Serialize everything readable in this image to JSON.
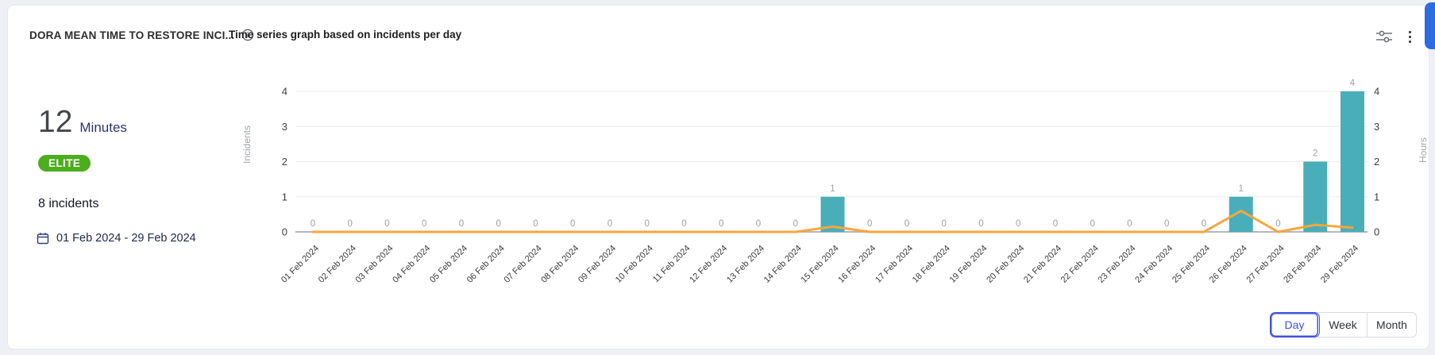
{
  "header": {
    "title": "DORA MEAN TIME TO RESTORE INCI...",
    "subtitle": "Time series graph based on incidents per day"
  },
  "icons": {
    "info": "info-icon",
    "filter": "filter-sliders-icon",
    "menu": "kebab-menu-icon",
    "calendar": "calendar-icon"
  },
  "stats": {
    "value": "12",
    "unit": "Minutes",
    "badge": "ELITE",
    "badge_color": "#4CAD1D",
    "incidents_label": "8 incidents",
    "date_range": "01 Feb 2024 - 29 Feb 2024"
  },
  "controls": {
    "selected": "Day",
    "accent_color": "#4053D8",
    "granularity": [
      {
        "label": "Day"
      },
      {
        "label": "Week"
      },
      {
        "label": "Month"
      }
    ]
  },
  "chart_data": {
    "type": "bar",
    "title": "Time series graph based on incidents per day",
    "categories": [
      "01 Feb 2024",
      "02 Feb 2024",
      "03 Feb 2024",
      "04 Feb 2024",
      "05 Feb 2024",
      "06 Feb 2024",
      "07 Feb 2024",
      "08 Feb 2024",
      "09 Feb 2024",
      "10 Feb 2024",
      "11 Feb 2024",
      "12 Feb 2024",
      "13 Feb 2024",
      "14 Feb 2024",
      "15 Feb 2024",
      "16 Feb 2024",
      "17 Feb 2024",
      "18 Feb 2024",
      "19 Feb 2024",
      "20 Feb 2024",
      "21 Feb 2024",
      "22 Feb 2024",
      "23 Feb 2024",
      "24 Feb 2024",
      "25 Feb 2024",
      "26 Feb 2024",
      "27 Feb 2024",
      "28 Feb 2024",
      "29 Feb 2024"
    ],
    "series": [
      {
        "name": "Incidents",
        "type": "bar",
        "axis": "left",
        "color": "#49AEBA",
        "values": [
          0,
          0,
          0,
          0,
          0,
          0,
          0,
          0,
          0,
          0,
          0,
          0,
          0,
          0,
          1,
          0,
          0,
          0,
          0,
          0,
          0,
          0,
          0,
          0,
          0,
          1,
          0,
          2,
          4
        ]
      },
      {
        "name": "Hours",
        "type": "line",
        "axis": "right",
        "color": "#F7A63D",
        "values": [
          0,
          0,
          0,
          0,
          0,
          0,
          0,
          0,
          0,
          0,
          0,
          0,
          0,
          0,
          0.15,
          0,
          0,
          0,
          0,
          0,
          0,
          0,
          0,
          0,
          0,
          0.6,
          0,
          0.2,
          0.12
        ]
      }
    ],
    "left_axis": {
      "label": "Incidents",
      "ticks": [
        0,
        1,
        2,
        3,
        4
      ],
      "range": [
        0,
        4
      ]
    },
    "right_axis": {
      "label": "Hours",
      "ticks": [
        0,
        1,
        2,
        3,
        4
      ],
      "range": [
        0,
        4
      ]
    },
    "grid": true,
    "legend": "none",
    "value_labels": true,
    "x_label_rotation": -45
  }
}
